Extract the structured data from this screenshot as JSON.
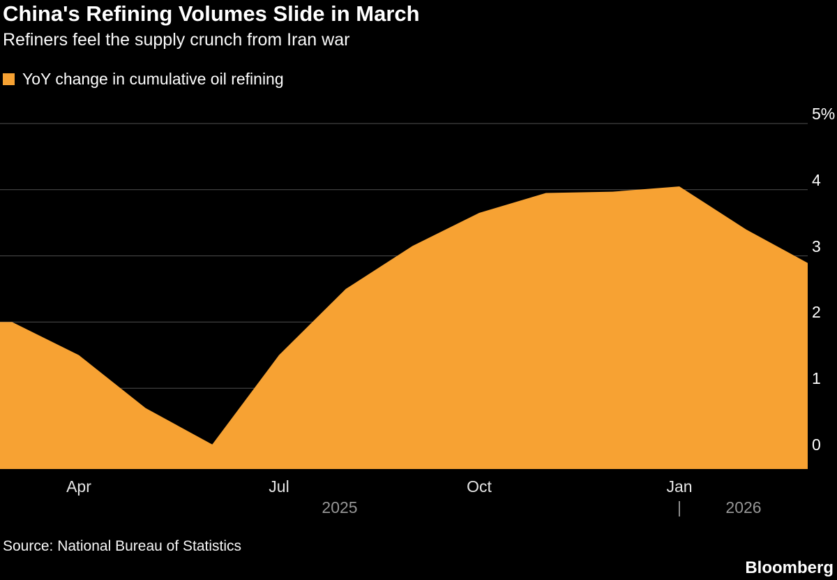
{
  "chart_data": {
    "type": "area",
    "title": "China's Refining Volumes Slide in March",
    "subtitle": "Refiners feel the supply crunch from Iran war",
    "series_name": "YoY change in cumulative oil refining",
    "x": [
      "Mar 2025",
      "Apr 2025",
      "May 2025",
      "Jun 2025",
      "Jul 2025",
      "Aug 2025",
      "Sep 2025",
      "Oct 2025",
      "Nov 2025",
      "Dec 2025",
      "Jan 2026",
      "Feb 2026",
      "Mar 2026"
    ],
    "values": [
      2.0,
      1.5,
      0.7,
      0.15,
      1.5,
      2.5,
      3.15,
      3.65,
      3.95,
      3.97,
      4.05,
      3.4,
      2.85
    ],
    "ylabel": "%",
    "ylim": [
      -0.25,
      5
    ],
    "y_ticks": [
      0,
      1,
      2,
      3,
      4,
      5
    ],
    "y_tick_labels": [
      "0",
      "1",
      "2",
      "3",
      "4",
      "5%"
    ],
    "x_ticks": [
      {
        "label": "Apr",
        "month_index": 1
      },
      {
        "label": "Jul",
        "month_index": 4
      },
      {
        "label": "Oct",
        "month_index": 7
      },
      {
        "label": "Jan",
        "month_index": 10
      }
    ],
    "years": [
      {
        "label": "2025"
      },
      {
        "label": "2026"
      }
    ],
    "year_separator": "|",
    "year_separator_month_index": 10,
    "grid": true,
    "legend_position": "top-left",
    "fill_color": "#F7A233",
    "grid_color": "#4f4f4f",
    "background": "#000000"
  },
  "footer": {
    "source": "Source: National Bureau of Statistics",
    "brand": "Bloomberg"
  }
}
